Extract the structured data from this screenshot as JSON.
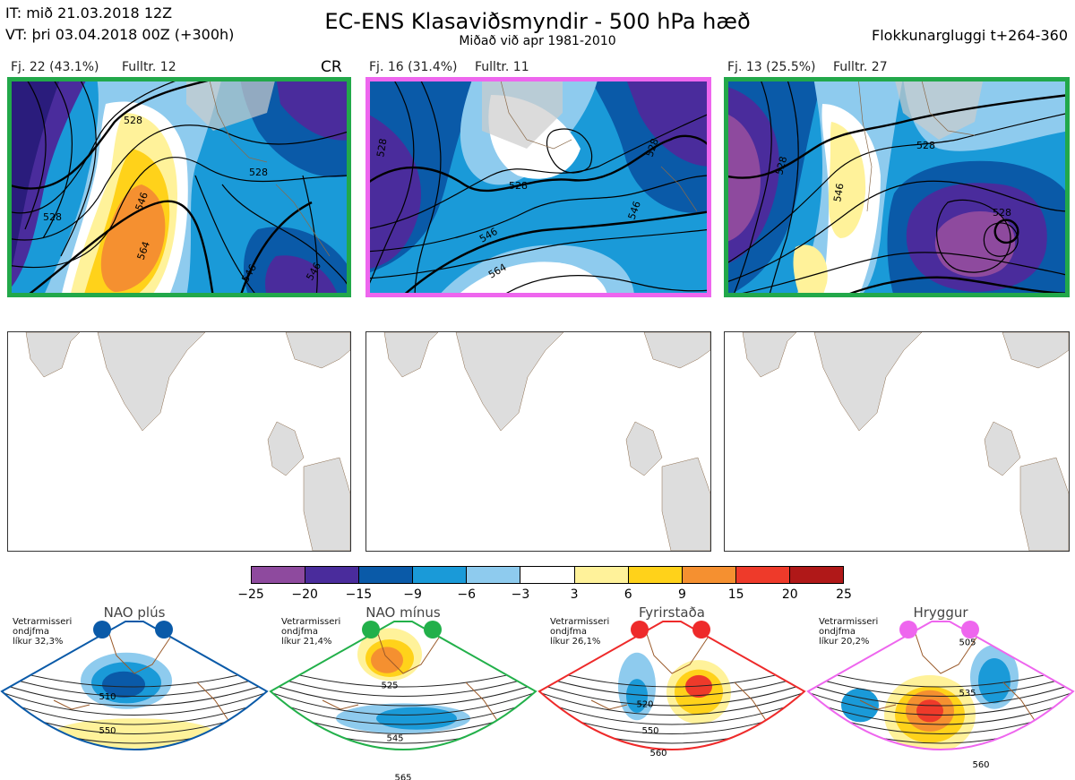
{
  "header": {
    "it_line": "IT: mið 21.03.2018 12Z",
    "vt_line": "VT: þri 03.04.2018 00Z  (+300h)",
    "title": "EC-ENS Klasaviðsmyndir - 500 hPa hæð",
    "subtitle": "Miðað við apr 1981-2010",
    "window": "Flokkunargluggi t+264-360"
  },
  "clusters": [
    {
      "label": "Fj. 22 (43.1%)",
      "repr": "Fulltr. 12",
      "tag": "CR",
      "frame_color": "#22a84a"
    },
    {
      "label": "Fj. 16 (31.4%)",
      "repr": "Fulltr. 11",
      "tag": "",
      "frame_color": "#ee66ee"
    },
    {
      "label": "Fj. 13 (25.5%)",
      "repr": "Fulltr. 27",
      "tag": "",
      "frame_color": "#22a84a"
    }
  ],
  "legend": {
    "colors": [
      "#8e4a9e",
      "#4a2c9c",
      "#0a5aa8",
      "#1a9ad8",
      "#8ecbee",
      "#ffffff",
      "#fff29a",
      "#ffd21a",
      "#f59030",
      "#ee3a2a",
      "#b01818"
    ],
    "ticks": [
      "−25",
      "−20",
      "−15",
      "−9",
      "−6",
      "−3",
      "3",
      "6",
      "9",
      "15",
      "20",
      "25"
    ]
  },
  "regimes": [
    {
      "name": "NAO plús",
      "note": [
        "Vetrarmisseri",
        "ondjfma",
        "líkur 32,3%"
      ],
      "color": "#0a5aa8",
      "contours": [
        "510",
        "550"
      ]
    },
    {
      "name": "NAO mínus",
      "note": [
        "Vetrarmisseri",
        "ondjfma",
        "líkur 21,4%"
      ],
      "color": "#22b04a",
      "contours": [
        "525",
        "545",
        "565"
      ]
    },
    {
      "name": "Fyrirstaða",
      "note": [
        "Vetrarmisseri",
        "ondjfma",
        "líkur 26,1%"
      ],
      "color": "#ee2a2a",
      "contours": [
        "520",
        "550",
        "560"
      ]
    },
    {
      "name": "Hryggur",
      "note": [
        "Vetrarmisseri",
        "ondjfma",
        "líkur 20,2%"
      ],
      "color": "#ee66ee",
      "contours": [
        "505",
        "535",
        "560"
      ]
    }
  ],
  "map_contour_labels": {
    "p1": [
      "528",
      "528",
      "546",
      "564",
      "546",
      "528",
      "546"
    ],
    "p2": [
      "528",
      "528",
      "546",
      "564",
      "528",
      "546"
    ],
    "p3": [
      "528",
      "546",
      "528",
      "528"
    ]
  }
}
